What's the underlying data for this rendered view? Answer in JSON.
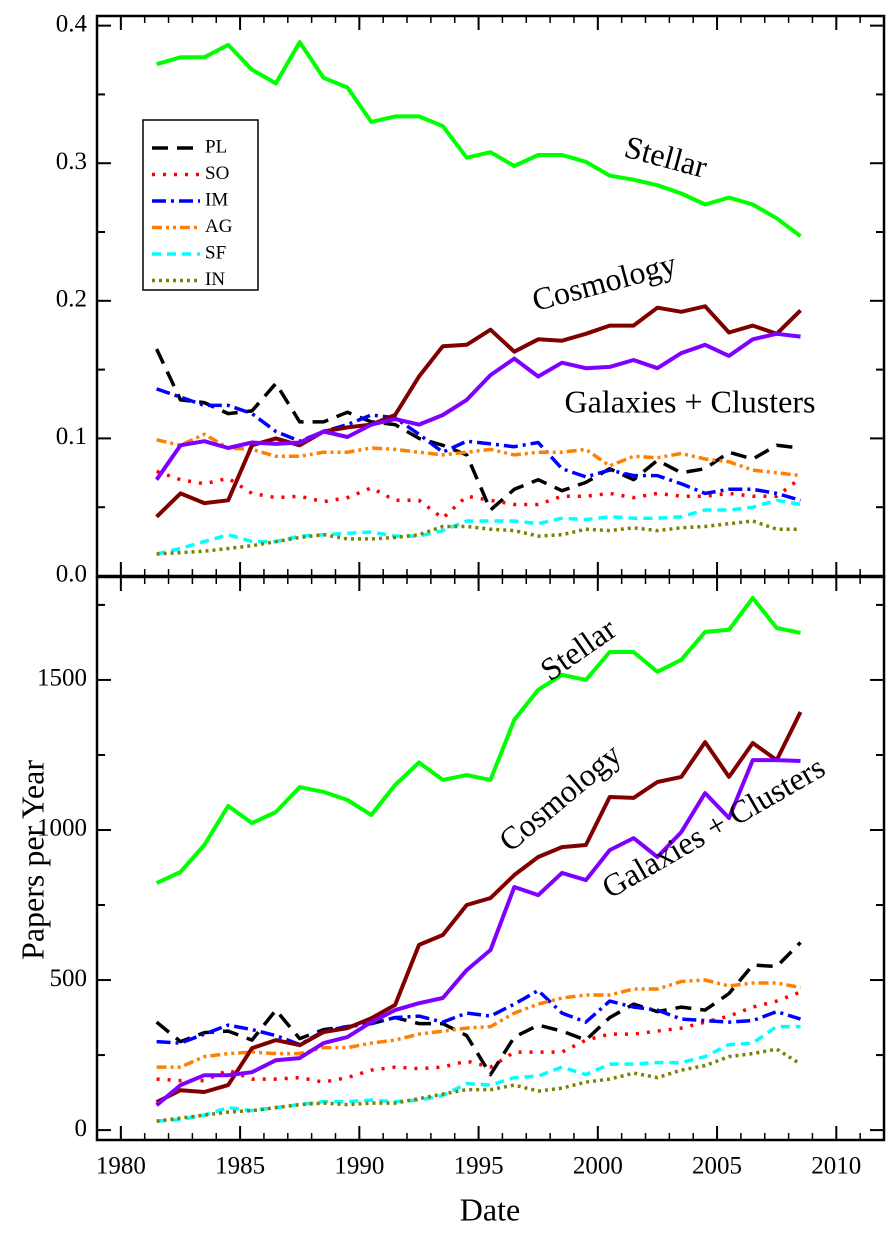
{
  "chart_data": [
    {
      "type": "line",
      "x": [
        1981.5,
        1982.5,
        1983.5,
        1984.5,
        1985.5,
        1986.5,
        1987.5,
        1988.5,
        1989.5,
        1990.5,
        1991.5,
        1992.5,
        1993.5,
        1994.5,
        1995.5,
        1996.5,
        1997.5,
        1998.5,
        1999.5,
        2000.5,
        2001.5,
        2002.5,
        2003.5,
        2004.5,
        2005.5,
        2006.5,
        2007.5,
        2008.5
      ],
      "xlim": [
        1979,
        2012
      ],
      "ylim": [
        0,
        0.407
      ],
      "yticks": [
        {
          "value": 0,
          "label": "0.0"
        },
        0.1,
        0.2,
        0.3,
        0.4
      ],
      "annotations": [
        "Stellar",
        "Cosmology",
        "Galaxies + Clusters"
      ],
      "series": [
        {
          "name": "PL",
          "color": "#000000",
          "dash": "dashed",
          "values": [
            0.165,
            0.128,
            0.126,
            0.118,
            0.12,
            0.14,
            0.112,
            0.112,
            0.119,
            0.112,
            0.11,
            0.1,
            0.095,
            0.088,
            0.048,
            0.063,
            0.07,
            0.062,
            0.068,
            0.078,
            0.07,
            0.084,
            0.075,
            0.078,
            0.09,
            0.085,
            0.095,
            0.093
          ]
        },
        {
          "name": "SO",
          "color": "#ff0000",
          "dash": "dotted",
          "values": [
            0.076,
            0.07,
            0.067,
            0.071,
            0.06,
            0.057,
            0.058,
            0.054,
            0.057,
            0.064,
            0.055,
            0.055,
            0.042,
            0.058,
            0.055,
            0.052,
            0.052,
            0.058,
            0.058,
            0.06,
            0.057,
            0.06,
            0.058,
            0.058,
            0.06,
            0.058,
            0.058,
            0.071
          ]
        },
        {
          "name": "IM",
          "color": "#0000ff",
          "dash": "dashdot",
          "values": [
            0.136,
            0.13,
            0.124,
            0.124,
            0.118,
            0.105,
            0.098,
            0.105,
            0.11,
            0.117,
            0.115,
            0.103,
            0.09,
            0.098,
            0.096,
            0.094,
            0.097,
            0.078,
            0.072,
            0.077,
            0.073,
            0.073,
            0.067,
            0.06,
            0.063,
            0.063,
            0.06,
            0.055
          ]
        },
        {
          "name": "AG",
          "color": "#ff8000",
          "dash": "dashdotdot",
          "values": [
            0.099,
            0.095,
            0.103,
            0.093,
            0.092,
            0.087,
            0.087,
            0.09,
            0.09,
            0.093,
            0.092,
            0.09,
            0.088,
            0.09,
            0.092,
            0.088,
            0.09,
            0.09,
            0.092,
            0.08,
            0.087,
            0.086,
            0.089,
            0.085,
            0.083,
            0.077,
            0.075,
            0.073
          ]
        },
        {
          "name": "SF",
          "color": "#00ffff",
          "dash": "shortdash",
          "values": [
            0.016,
            0.02,
            0.025,
            0.03,
            0.025,
            0.025,
            0.029,
            0.03,
            0.031,
            0.032,
            0.029,
            0.029,
            0.033,
            0.04,
            0.04,
            0.04,
            0.038,
            0.042,
            0.041,
            0.043,
            0.042,
            0.042,
            0.043,
            0.048,
            0.048,
            0.05,
            0.055,
            0.052
          ]
        },
        {
          "name": "IN",
          "color": "#808000",
          "dash": "finedot",
          "values": [
            0.016,
            0.017,
            0.018,
            0.02,
            0.022,
            0.025,
            0.028,
            0.03,
            0.027,
            0.027,
            0.028,
            0.03,
            0.036,
            0.036,
            0.034,
            0.033,
            0.029,
            0.03,
            0.034,
            0.033,
            0.035,
            0.033,
            0.035,
            0.036,
            0.038,
            0.04,
            0.034,
            0.034
          ]
        },
        {
          "color": "#00ff00",
          "dash": "solid",
          "values": [
            0.372,
            0.377,
            0.377,
            0.386,
            0.368,
            0.358,
            0.388,
            0.362,
            0.355,
            0.33,
            0.334,
            0.334,
            0.327,
            0.304,
            0.308,
            0.298,
            0.306,
            0.306,
            0.301,
            0.291,
            0.288,
            0.284,
            0.278,
            0.27,
            0.275,
            0.27,
            0.26,
            0.247
          ]
        },
        {
          "color": "#800000",
          "dash": "solid",
          "values": [
            0.043,
            0.06,
            0.053,
            0.055,
            0.095,
            0.1,
            0.095,
            0.105,
            0.108,
            0.11,
            0.117,
            0.145,
            0.167,
            0.168,
            0.179,
            0.163,
            0.172,
            0.171,
            0.176,
            0.182,
            0.182,
            0.195,
            0.192,
            0.196,
            0.177,
            0.182,
            0.176,
            0.193
          ]
        },
        {
          "color": "#8000ff",
          "dash": "solid",
          "values": [
            0.07,
            0.095,
            0.098,
            0.093,
            0.097,
            0.096,
            0.097,
            0.105,
            0.101,
            0.11,
            0.114,
            0.11,
            0.117,
            0.128,
            0.146,
            0.158,
            0.145,
            0.155,
            0.151,
            0.152,
            0.157,
            0.151,
            0.162,
            0.168,
            0.16,
            0.172,
            0.176,
            0.174
          ]
        }
      ]
    },
    {
      "type": "line",
      "x": [
        1981.5,
        1982.5,
        1983.5,
        1984.5,
        1985.5,
        1986.5,
        1987.5,
        1988.5,
        1989.5,
        1990.5,
        1991.5,
        1992.5,
        1993.5,
        1994.5,
        1995.5,
        1996.5,
        1997.5,
        1998.5,
        1999.5,
        2000.5,
        2001.5,
        2002.5,
        2003.5,
        2004.5,
        2005.5,
        2006.5,
        2007.5,
        2008.5
      ],
      "xlabel": "Date",
      "ylabel": "Papers per Year",
      "xlim": [
        1979,
        2012
      ],
      "ylim": [
        -33,
        1843
      ],
      "xticks": [
        1980,
        1985,
        1990,
        1995,
        2000,
        2005,
        2010
      ],
      "yticks": [
        0,
        500,
        1000,
        1500
      ],
      "annotations": [
        "Stellar",
        "Cosmology",
        "Galaxies + Clusters"
      ],
      "series": [
        {
          "color": "#000000",
          "dash": "dashed",
          "values": [
            360,
            295,
            325,
            330,
            300,
            400,
            305,
            335,
            345,
            355,
            375,
            355,
            355,
            315,
            185,
            310,
            350,
            330,
            300,
            375,
            420,
            395,
            410,
            400,
            455,
            550,
            545,
            625
          ]
        },
        {
          "color": "#ff0000",
          "dash": "dotted",
          "values": [
            170,
            165,
            165,
            200,
            170,
            170,
            175,
            160,
            175,
            200,
            210,
            205,
            210,
            230,
            210,
            260,
            260,
            260,
            300,
            320,
            320,
            330,
            340,
            360,
            380,
            410,
            430,
            460
          ]
        },
        {
          "color": "#0000ff",
          "dash": "dashdot",
          "values": [
            295,
            290,
            320,
            350,
            335,
            315,
            285,
            330,
            345,
            355,
            375,
            380,
            360,
            390,
            380,
            420,
            465,
            390,
            360,
            430,
            410,
            400,
            370,
            365,
            360,
            365,
            395,
            370
          ]
        },
        {
          "color": "#ff8000",
          "dash": "dashdotdot",
          "values": [
            210,
            210,
            245,
            255,
            260,
            255,
            255,
            275,
            275,
            290,
            300,
            320,
            330,
            340,
            345,
            390,
            420,
            440,
            450,
            450,
            470,
            470,
            495,
            500,
            480,
            490,
            490,
            475
          ]
        },
        {
          "color": "#00ffff",
          "dash": "shortdash",
          "values": [
            30,
            35,
            50,
            75,
            65,
            75,
            85,
            95,
            95,
            100,
            95,
            100,
            115,
            155,
            150,
            175,
            180,
            210,
            185,
            220,
            220,
            225,
            225,
            245,
            285,
            290,
            345,
            345
          ]
        },
        {
          "color": "#808000",
          "dash": "finedot",
          "values": [
            30,
            40,
            50,
            60,
            65,
            75,
            85,
            90,
            85,
            90,
            90,
            105,
            120,
            135,
            135,
            150,
            130,
            140,
            160,
            170,
            190,
            175,
            200,
            215,
            245,
            255,
            270,
            220
          ]
        },
        {
          "color": "#00ff00",
          "dash": "solid",
          "values": [
            823,
            860,
            950,
            1080,
            1023,
            1060,
            1143,
            1127,
            1100,
            1050,
            1150,
            1225,
            1167,
            1183,
            1167,
            1367,
            1467,
            1517,
            1500,
            1593,
            1593,
            1527,
            1567,
            1660,
            1667,
            1773,
            1673,
            1657
          ]
        },
        {
          "color": "#800000",
          "dash": "solid",
          "values": [
            93,
            133,
            127,
            150,
            273,
            300,
            283,
            327,
            340,
            373,
            417,
            617,
            650,
            750,
            773,
            850,
            910,
            943,
            950,
            1110,
            1107,
            1160,
            1177,
            1293,
            1177,
            1290,
            1233,
            1393
          ]
        },
        {
          "color": "#8000ff",
          "dash": "solid",
          "values": [
            83,
            150,
            183,
            183,
            193,
            233,
            240,
            290,
            310,
            360,
            400,
            423,
            440,
            533,
            600,
            810,
            783,
            857,
            833,
            933,
            973,
            910,
            993,
            1123,
            1040,
            1233,
            1233,
            1230
          ]
        }
      ]
    }
  ]
}
